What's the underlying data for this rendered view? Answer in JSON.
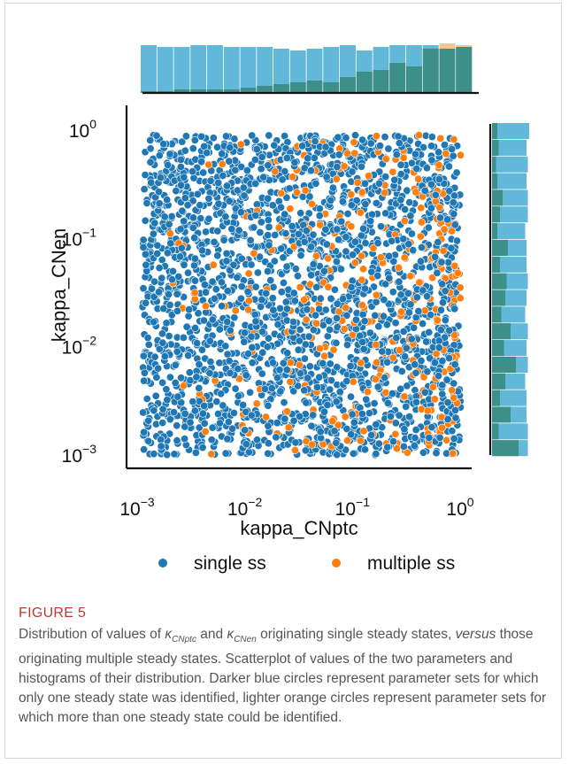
{
  "chart_data": {
    "type": "scatter",
    "xlabel": "kappa_CNptc",
    "ylabel": "kappa_CNen",
    "xscale": "log",
    "yscale": "log",
    "xlim": [
      0.001,
      1
    ],
    "ylim": [
      0.001,
      1
    ],
    "x_ticks": [
      "10^-3",
      "10^-2",
      "10^-1",
      "10^0"
    ],
    "y_ticks": [
      "10^-3",
      "10^-2",
      "10^-1",
      "10^0"
    ],
    "legend": {
      "placement": "bottom",
      "entries": [
        "single ss",
        "multiple ss"
      ]
    },
    "series": [
      {
        "name": "single ss",
        "color": "#1f77b4",
        "count_approx": 2000
      },
      {
        "name": "multiple ss",
        "color": "#ff7f0e",
        "count_approx": 300
      }
    ],
    "marginal_histograms": {
      "bins": 20,
      "x_single": [
        27,
        26,
        26,
        27,
        27,
        26,
        26,
        26,
        25,
        24,
        25,
        26,
        27,
        24,
        26,
        27,
        27,
        27,
        25,
        26
      ],
      "x_multiple": [
        1,
        1,
        2,
        2,
        2,
        2,
        3,
        4,
        5,
        6,
        7,
        6,
        9,
        12,
        13,
        17,
        15,
        25,
        28,
        27
      ],
      "y_single": [
        27,
        27,
        26,
        26,
        25,
        27,
        26,
        27,
        25,
        26,
        27,
        26,
        26,
        25,
        27,
        27,
        26,
        27,
        26,
        28
      ],
      "y_multiple": [
        20,
        5,
        14,
        6,
        10,
        18,
        9,
        14,
        7,
        10,
        11,
        6,
        12,
        4,
        6,
        8,
        4,
        3,
        5,
        4
      ]
    }
  },
  "caption": {
    "label": "FIGURE 5",
    "p1": "Distribution of values of ",
    "sym1": "κ",
    "sub1": "CNptc",
    "p2": " and ",
    "sym2": "κ",
    "sub2": "CNen",
    "p3": " originating single steady states, ",
    "versus": "versus",
    "p4": " those originating multiple steady states. Scatterplot of values of the two parameters and histograms of their distribution. Darker blue circles represent parameter sets for which only one steady state was identified, lighter orange circles represent parameter sets for which more than one steady state could be identified."
  }
}
